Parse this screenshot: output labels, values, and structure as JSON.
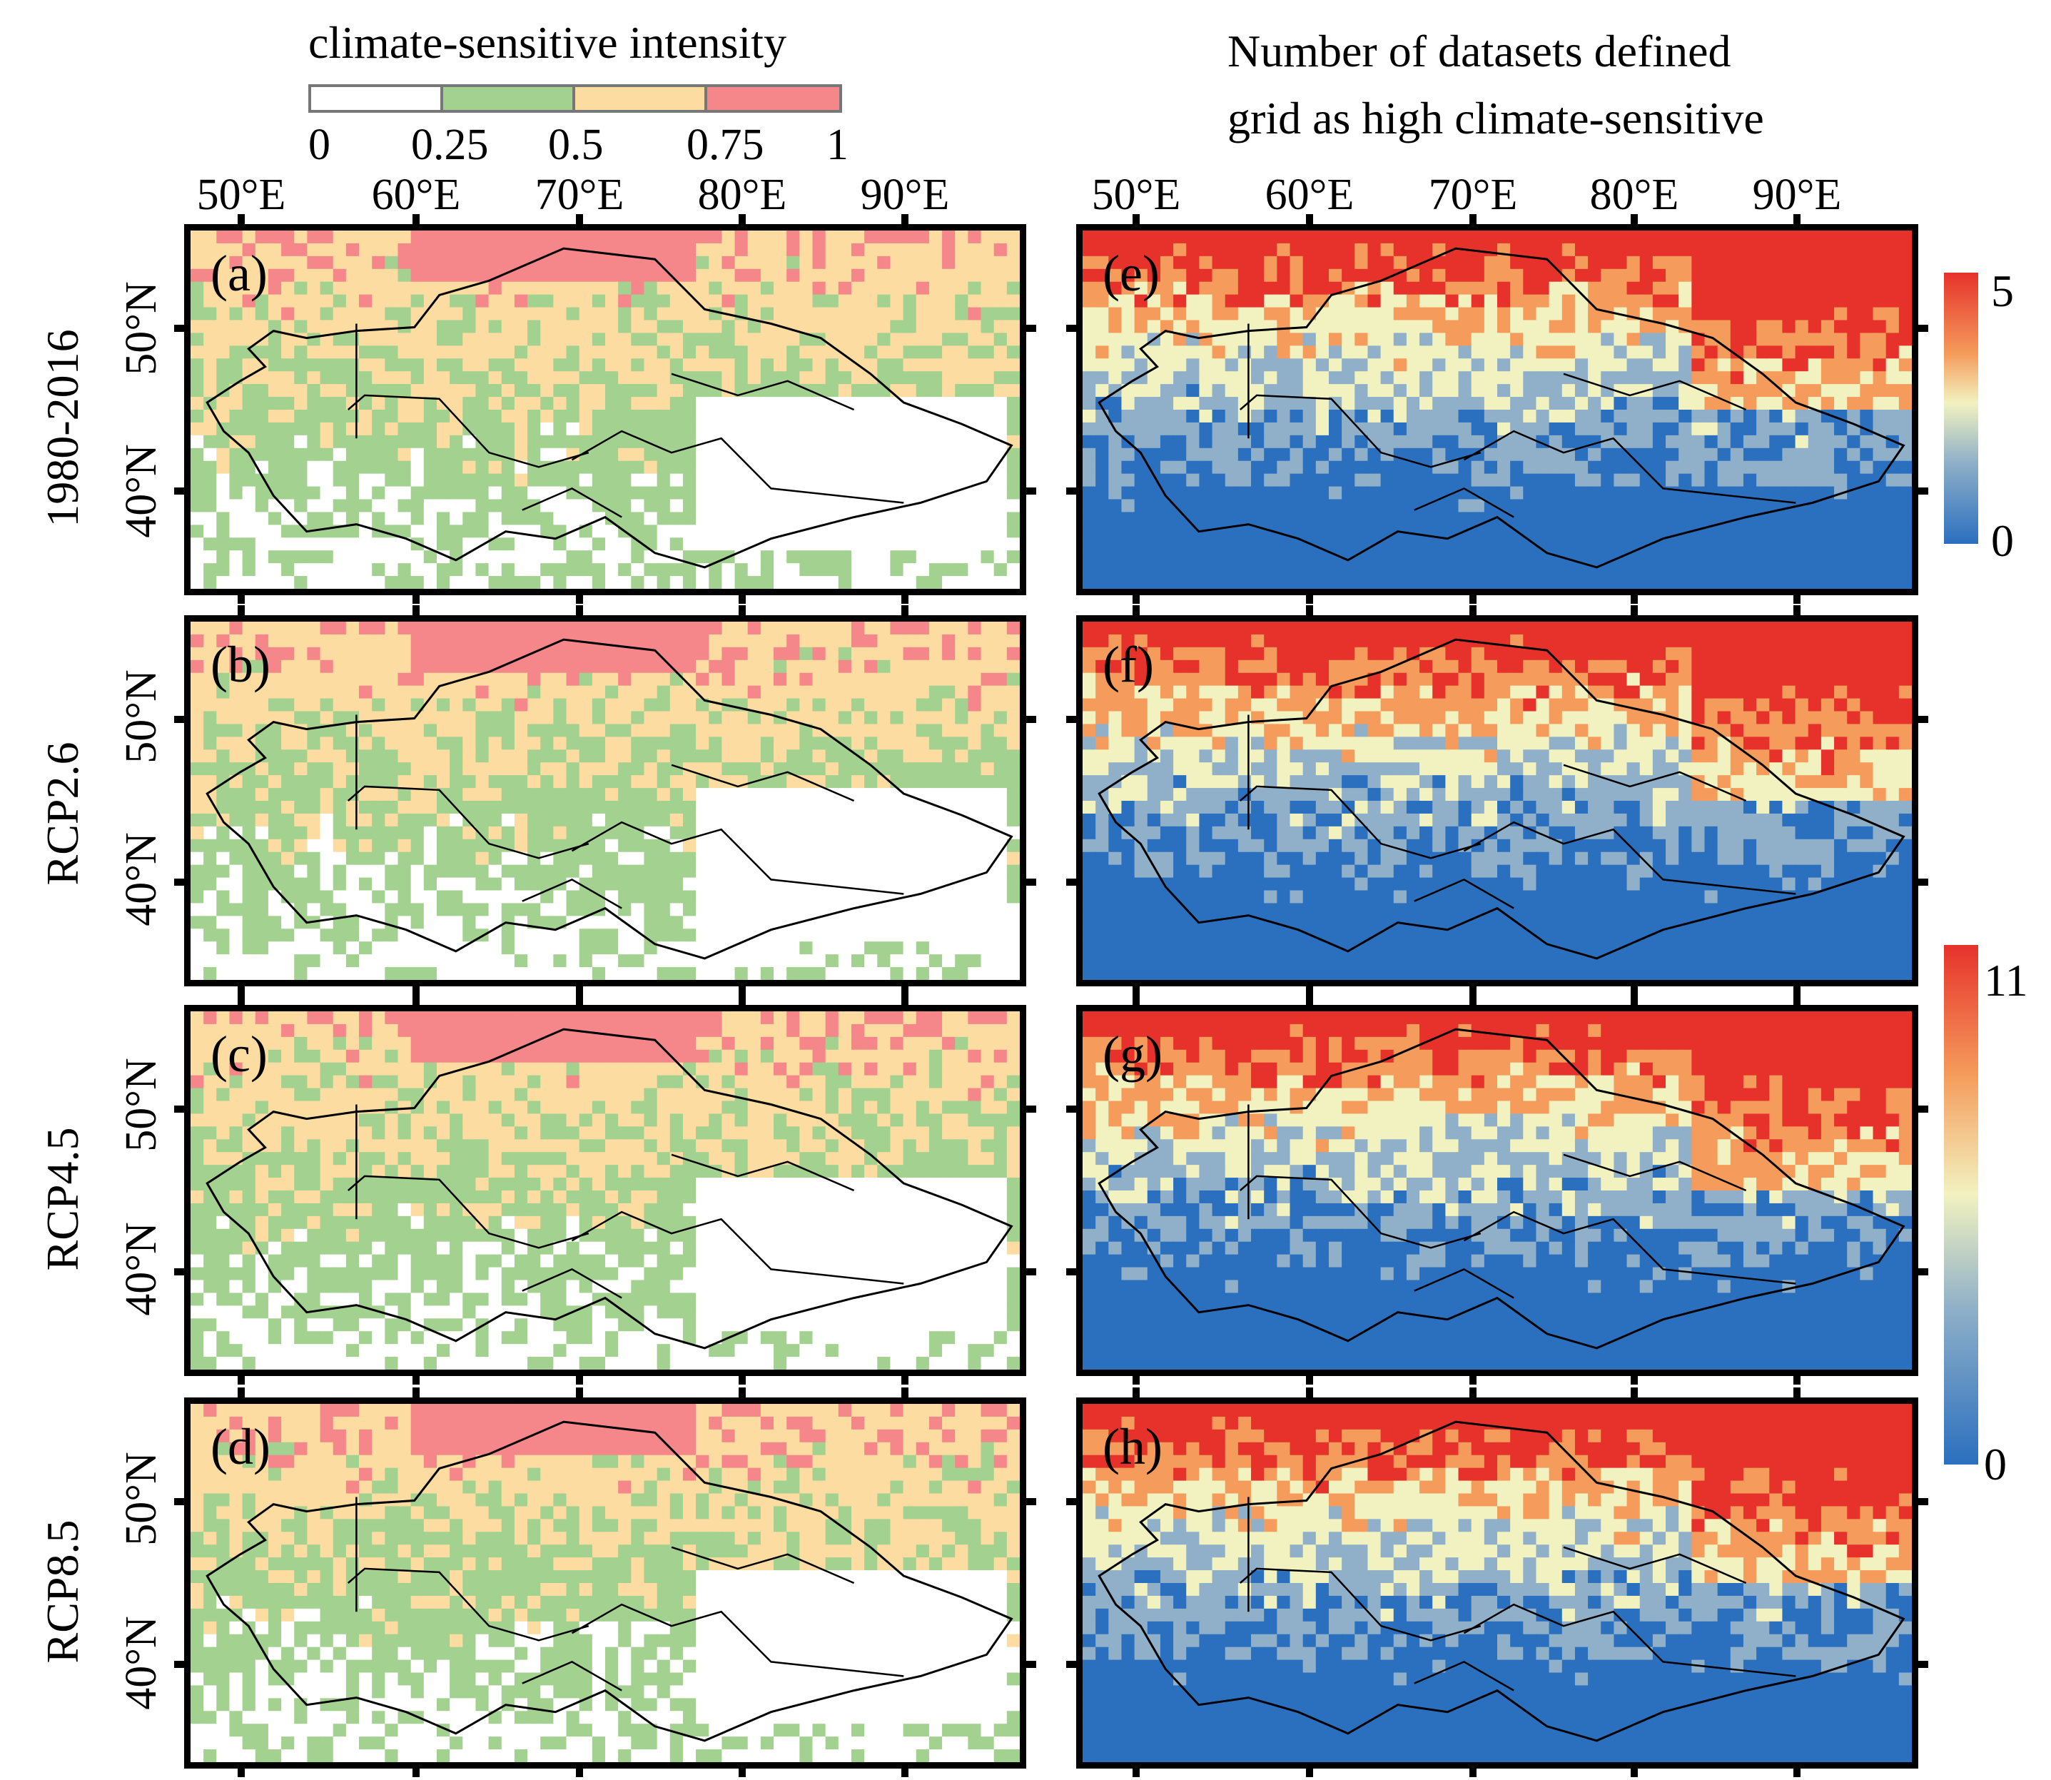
{
  "legend_left": {
    "title": "climate-sensitive intensity",
    "ticks": [
      "0",
      "0.25",
      "0.5",
      "0.75",
      "1"
    ],
    "classes": [
      {
        "range": [
          0,
          0.25
        ],
        "color": "#ffffff"
      },
      {
        "range": [
          0.25,
          0.5
        ],
        "color": "#a3d18f"
      },
      {
        "range": [
          0.5,
          0.75
        ],
        "color": "#fcdca0"
      },
      {
        "range": [
          0.75,
          1
        ],
        "color": "#f5878a"
      }
    ]
  },
  "legend_right": {
    "title_line1": "Number of datasets defined",
    "title_line2": "grid as high climate-sensitive",
    "scale_historical": {
      "max": "5",
      "min": "0"
    },
    "scale_future": {
      "max": "11",
      "min": "0"
    },
    "colors": [
      "#2b6fbf",
      "#8fb0c8",
      "#f2f2c0",
      "#f59c5c",
      "#e6322b"
    ]
  },
  "lon_ticks": [
    "50°E",
    "60°E",
    "70°E",
    "80°E",
    "90°E"
  ],
  "lat_ticks": [
    "50°N",
    "40°N"
  ],
  "rows": [
    {
      "label": "1980-2016",
      "left_letter": "(a)",
      "right_letter": "(e)"
    },
    {
      "label": "RCP2.6",
      "left_letter": "(b)",
      "right_letter": "(f)"
    },
    {
      "label": "RCP4.5",
      "left_letter": "(c)",
      "right_letter": "(g)"
    },
    {
      "label": "RCP8.5",
      "left_letter": "(d)",
      "right_letter": "(h)"
    }
  ]
}
